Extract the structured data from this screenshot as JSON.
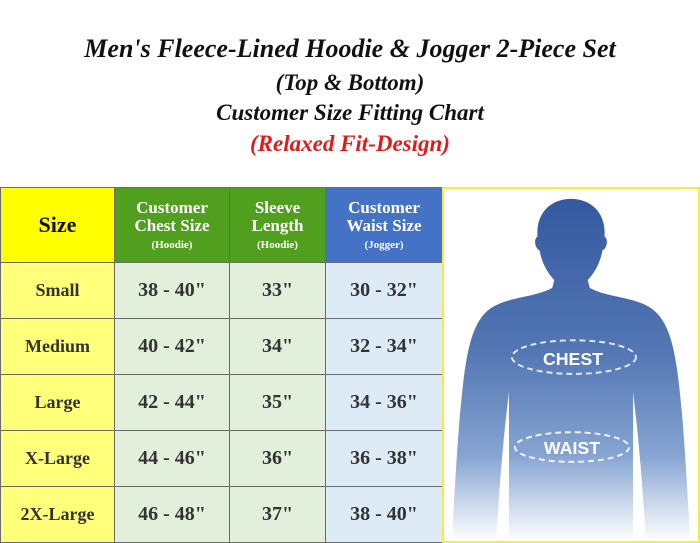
{
  "title": {
    "line1": "Men's Fleece-Lined Hoodie & Jogger 2-Piece Set",
    "line2": "(Top & Bottom)",
    "line3": "Customer Size Fitting Chart",
    "line4": "(Relaxed Fit-Design)"
  },
  "table": {
    "headers": [
      {
        "main": "Size",
        "sub": ""
      },
      {
        "main": "Customer Chest Size",
        "sub": "(Hoodie)"
      },
      {
        "main": "Sleeve Length",
        "sub": "(Hoodie)"
      },
      {
        "main": "Customer Waist Size",
        "sub": "(Jogger)"
      }
    ],
    "rows": [
      [
        "Small",
        "38 - 40\"",
        "33\"",
        "30 - 32\""
      ],
      [
        "Medium",
        "40 - 42\"",
        "34\"",
        "32 - 34\""
      ],
      [
        "Large",
        "42 - 44\"",
        "35\"",
        "34 - 36\""
      ],
      [
        "X-Large",
        "44 - 46\"",
        "36\"",
        "36 - 38\""
      ],
      [
        "2X-Large",
        "46 - 48\"",
        "37\"",
        "38 - 40\""
      ]
    ]
  },
  "figure": {
    "chest_label": "CHEST",
    "waist_label": "WAIST"
  },
  "colors": {
    "size_header": "#ffff00",
    "green_header": "#519f1f",
    "blue_header": "#4472c4",
    "subtitle_red": "#e01b1b"
  }
}
